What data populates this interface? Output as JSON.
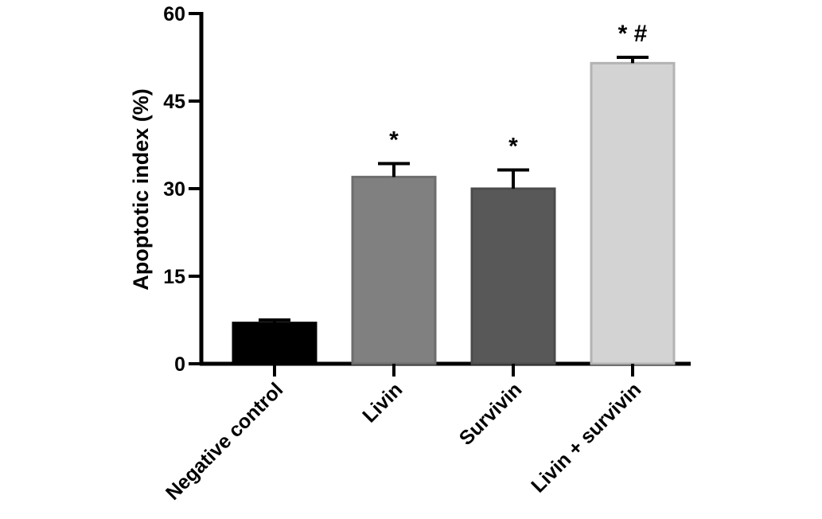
{
  "chart_data": {
    "type": "bar",
    "categories": [
      "Negative control",
      "Livin",
      "Survivin",
      "Livin + survivin"
    ],
    "values": [
      7,
      32,
      30,
      51.5
    ],
    "errors": [
      0.5,
      2.3,
      3.2,
      1.0
    ],
    "annotations": [
      "",
      "*",
      "*",
      "*#"
    ],
    "colors": [
      "#000000",
      "#808080",
      "#585858",
      "#d3d3d3"
    ],
    "ylabel": "Apoptotic index (%)",
    "ylim": [
      0,
      60
    ],
    "yticks": [
      0,
      15,
      30,
      45,
      60
    ],
    "grid": false
  }
}
